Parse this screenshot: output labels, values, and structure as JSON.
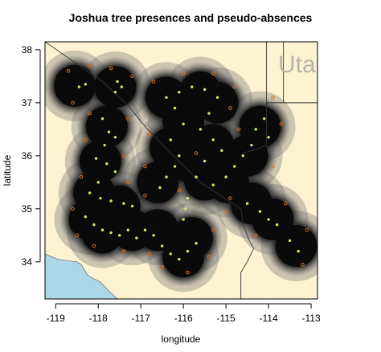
{
  "chart_data": {
    "type": "scatter",
    "title": "Joshua tree presences and pseudo-absences",
    "xlabel": "longitude",
    "ylabel": "latitude",
    "xlim": [
      -119.25,
      -112.85
    ],
    "ylim": [
      33.3,
      38.15
    ],
    "x_ticks": [
      -119,
      -118,
      -117,
      -116,
      -115,
      -114,
      -113
    ],
    "y_ticks": [
      34,
      35,
      36,
      37,
      38
    ],
    "x_tick_labels": [
      "-119",
      "-118",
      "-117",
      "-116",
      "-115",
      "-114",
      "-113"
    ],
    "y_tick_labels": [
      "34",
      "35",
      "36",
      "37",
      "38"
    ],
    "grid": false,
    "legend": "none",
    "map_labels": [
      "Uta"
    ],
    "colors": {
      "land": "#fdf3d3",
      "water": "#acd7e6",
      "buffer_dark": "#0a0a0a",
      "buffer_halo": "#6e6e6e",
      "presence": "#c6f062",
      "pseudo_absence": "#d4732a",
      "border": "#333333"
    },
    "water_polygon": [
      [
        -119.25,
        34.15
      ],
      [
        -118.95,
        34.05
      ],
      [
        -118.7,
        34.02
      ],
      [
        -118.5,
        34.0
      ],
      [
        -118.4,
        33.95
      ],
      [
        -118.25,
        33.75
      ],
      [
        -118.15,
        33.7
      ],
      [
        -117.95,
        33.62
      ],
      [
        -117.75,
        33.45
      ],
      [
        -117.55,
        33.3
      ],
      [
        -119.25,
        33.3
      ]
    ],
    "borders": [
      [
        [
          -119.25,
          38.15
        ],
        [
          -117.9,
          37.4
        ],
        [
          -117.3,
          36.95
        ],
        [
          -116.9,
          36.55
        ],
        [
          -116.3,
          36.05
        ],
        [
          -115.6,
          35.5
        ],
        [
          -114.65,
          35.0
        ]
      ],
      [
        [
          -114.65,
          35.0
        ],
        [
          -114.6,
          34.7
        ],
        [
          -114.45,
          34.4
        ],
        [
          -114.35,
          34.25
        ],
        [
          -114.5,
          34.0
        ],
        [
          -114.65,
          33.8
        ],
        [
          -114.65,
          33.3
        ]
      ],
      [
        [
          -114.05,
          36.2
        ],
        [
          -114.05,
          38.15
        ]
      ],
      [
        [
          -114.05,
          37.0
        ],
        [
          -112.85,
          37.0
        ]
      ],
      [
        [
          -114.05,
          36.2
        ],
        [
          -114.3,
          36.12
        ],
        [
          -114.6,
          36.05
        ]
      ],
      [
        [
          -113.65,
          38.15
        ],
        [
          -113.65,
          37.0
        ]
      ]
    ],
    "series": [
      {
        "name": "",
        "role": "presence_buffer",
        "note": "dark circular buffers around presence localities",
        "points": [
          {
            "x": -118.55,
            "y": 37.32
          },
          {
            "x": -117.6,
            "y": 37.3
          },
          {
            "x": -117.8,
            "y": 36.55
          },
          {
            "x": -117.95,
            "y": 35.9
          },
          {
            "x": -118.1,
            "y": 35.3
          },
          {
            "x": -118.2,
            "y": 34.8
          },
          {
            "x": -117.9,
            "y": 34.55
          },
          {
            "x": -117.2,
            "y": 34.6
          },
          {
            "x": -117.5,
            "y": 35.05
          },
          {
            "x": -116.6,
            "y": 34.6
          },
          {
            "x": -116.0,
            "y": 34.1
          },
          {
            "x": -115.8,
            "y": 34.45
          },
          {
            "x": -116.6,
            "y": 35.5
          },
          {
            "x": -116.3,
            "y": 36.15
          },
          {
            "x": -116.0,
            "y": 36.65
          },
          {
            "x": -116.4,
            "y": 37.1
          },
          {
            "x": -115.6,
            "y": 37.2
          },
          {
            "x": -115.2,
            "y": 37.0
          },
          {
            "x": -115.3,
            "y": 36.2
          },
          {
            "x": -115.5,
            "y": 35.55
          },
          {
            "x": -114.95,
            "y": 35.5
          },
          {
            "x": -114.5,
            "y": 36.0
          },
          {
            "x": -114.2,
            "y": 36.55
          },
          {
            "x": -114.4,
            "y": 35.1
          },
          {
            "x": -113.9,
            "y": 34.8
          },
          {
            "x": -113.35,
            "y": 34.3
          },
          {
            "x": -115.9,
            "y": 35.9
          }
        ]
      },
      {
        "name": "",
        "role": "presence",
        "note": "yellow-green dots",
        "points": [
          {
            "x": -118.45,
            "y": 37.3
          },
          {
            "x": -118.3,
            "y": 37.35
          },
          {
            "x": -117.55,
            "y": 37.4
          },
          {
            "x": -117.45,
            "y": 37.3
          },
          {
            "x": -117.6,
            "y": 37.2
          },
          {
            "x": -117.9,
            "y": 36.7
          },
          {
            "x": -117.75,
            "y": 36.45
          },
          {
            "x": -117.6,
            "y": 36.35
          },
          {
            "x": -117.85,
            "y": 36.2
          },
          {
            "x": -118.05,
            "y": 35.95
          },
          {
            "x": -117.8,
            "y": 35.85
          },
          {
            "x": -117.6,
            "y": 35.7
          },
          {
            "x": -118.0,
            "y": 35.5
          },
          {
            "x": -118.2,
            "y": 35.3
          },
          {
            "x": -117.95,
            "y": 35.2
          },
          {
            "x": -117.7,
            "y": 35.15
          },
          {
            "x": -117.4,
            "y": 35.1
          },
          {
            "x": -117.2,
            "y": 35.05
          },
          {
            "x": -118.3,
            "y": 34.85
          },
          {
            "x": -118.1,
            "y": 34.7
          },
          {
            "x": -117.9,
            "y": 34.6
          },
          {
            "x": -117.7,
            "y": 34.55
          },
          {
            "x": -117.5,
            "y": 34.5
          },
          {
            "x": -117.3,
            "y": 34.6
          },
          {
            "x": -117.1,
            "y": 34.45
          },
          {
            "x": -116.9,
            "y": 34.6
          },
          {
            "x": -116.7,
            "y": 34.5
          },
          {
            "x": -116.5,
            "y": 34.3
          },
          {
            "x": -116.3,
            "y": 34.15
          },
          {
            "x": -116.1,
            "y": 34.05
          },
          {
            "x": -115.9,
            "y": 34.2
          },
          {
            "x": -115.7,
            "y": 34.35
          },
          {
            "x": -116.55,
            "y": 35.4
          },
          {
            "x": -116.4,
            "y": 35.6
          },
          {
            "x": -116.2,
            "y": 35.8
          },
          {
            "x": -116.1,
            "y": 36.0
          },
          {
            "x": -116.3,
            "y": 36.3
          },
          {
            "x": -116.0,
            "y": 36.6
          },
          {
            "x": -116.2,
            "y": 36.9
          },
          {
            "x": -116.4,
            "y": 37.1
          },
          {
            "x": -116.1,
            "y": 37.2
          },
          {
            "x": -115.8,
            "y": 37.3
          },
          {
            "x": -115.5,
            "y": 37.25
          },
          {
            "x": -115.2,
            "y": 37.1
          },
          {
            "x": -115.4,
            "y": 36.8
          },
          {
            "x": -115.6,
            "y": 36.5
          },
          {
            "x": -115.3,
            "y": 36.3
          },
          {
            "x": -115.1,
            "y": 36.1
          },
          {
            "x": -115.5,
            "y": 35.9
          },
          {
            "x": -115.7,
            "y": 35.6
          },
          {
            "x": -115.3,
            "y": 35.45
          },
          {
            "x": -115.0,
            "y": 35.6
          },
          {
            "x": -114.8,
            "y": 35.8
          },
          {
            "x": -114.6,
            "y": 36.0
          },
          {
            "x": -114.4,
            "y": 36.2
          },
          {
            "x": -114.3,
            "y": 36.5
          },
          {
            "x": -114.1,
            "y": 36.7
          },
          {
            "x": -114.0,
            "y": 36.35
          },
          {
            "x": -114.5,
            "y": 35.1
          },
          {
            "x": -114.2,
            "y": 34.95
          },
          {
            "x": -114.0,
            "y": 34.8
          },
          {
            "x": -113.8,
            "y": 34.7
          },
          {
            "x": -113.5,
            "y": 34.4
          },
          {
            "x": -113.3,
            "y": 34.2
          },
          {
            "x": -115.9,
            "y": 35.2
          },
          {
            "x": -115.95,
            "y": 35.0
          },
          {
            "x": -116.0,
            "y": 34.8
          }
        ]
      },
      {
        "name": "",
        "role": "pseudo_absence",
        "note": "orange open circles",
        "points": [
          {
            "x": -118.7,
            "y": 37.6
          },
          {
            "x": -118.2,
            "y": 37.7
          },
          {
            "x": -117.7,
            "y": 37.65
          },
          {
            "x": -117.2,
            "y": 37.5
          },
          {
            "x": -118.6,
            "y": 37.0
          },
          {
            "x": -118.2,
            "y": 36.8
          },
          {
            "x": -117.3,
            "y": 36.7
          },
          {
            "x": -118.3,
            "y": 36.3
          },
          {
            "x": -117.4,
            "y": 36.0
          },
          {
            "x": -118.4,
            "y": 35.6
          },
          {
            "x": -117.3,
            "y": 35.5
          },
          {
            "x": -118.6,
            "y": 35.0
          },
          {
            "x": -116.9,
            "y": 35.25
          },
          {
            "x": -118.5,
            "y": 34.5
          },
          {
            "x": -118.1,
            "y": 34.3
          },
          {
            "x": -117.4,
            "y": 34.2
          },
          {
            "x": -116.8,
            "y": 34.15
          },
          {
            "x": -116.5,
            "y": 33.9
          },
          {
            "x": -115.9,
            "y": 33.8
          },
          {
            "x": -115.4,
            "y": 34.1
          },
          {
            "x": -115.3,
            "y": 34.6
          },
          {
            "x": -116.9,
            "y": 35.8
          },
          {
            "x": -116.8,
            "y": 36.4
          },
          {
            "x": -116.7,
            "y": 37.4
          },
          {
            "x": -116.0,
            "y": 37.55
          },
          {
            "x": -115.3,
            "y": 37.55
          },
          {
            "x": -114.8,
            "y": 37.3
          },
          {
            "x": -114.7,
            "y": 36.5
          },
          {
            "x": -113.9,
            "y": 37.1
          },
          {
            "x": -113.7,
            "y": 36.6
          },
          {
            "x": -113.9,
            "y": 35.8
          },
          {
            "x": -114.9,
            "y": 35.2
          },
          {
            "x": -113.6,
            "y": 35.1
          },
          {
            "x": -114.3,
            "y": 34.5
          },
          {
            "x": -113.1,
            "y": 34.6
          },
          {
            "x": -113.2,
            "y": 33.95
          },
          {
            "x": -115.0,
            "y": 34.95
          },
          {
            "x": -116.1,
            "y": 35.35
          },
          {
            "x": -115.7,
            "y": 36.05
          },
          {
            "x": -114.9,
            "y": 36.9
          }
        ]
      }
    ]
  }
}
